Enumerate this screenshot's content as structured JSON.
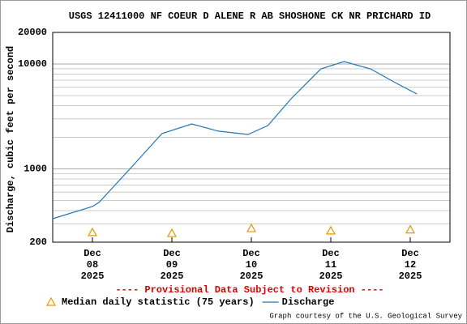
{
  "chart_data": {
    "type": "line",
    "title": "USGS 12411000 NF COEUR D ALENE R AB SHOSHONE CK NR PRICHARD ID",
    "y_label": "Discharge, cubic feet per second",
    "annotation": "---- Provisional Data Subject to Revision ----",
    "credit": "Graph courtesy of the U.S. Geological Survey",
    "log_scale": true,
    "grid": true,
    "legend_position": "bottom",
    "xlim": [
      "2025-12-07T12:00",
      "2025-12-12T12:00"
    ],
    "xticks": [
      {
        "value": "2025-12-08T00:00",
        "label": [
          "Dec",
          "08",
          "2025"
        ]
      },
      {
        "value": "2025-12-09T00:00",
        "label": [
          "Dec",
          "09",
          "2025"
        ]
      },
      {
        "value": "2025-12-10T00:00",
        "label": [
          "Dec",
          "10",
          "2025"
        ]
      },
      {
        "value": "2025-12-11T00:00",
        "label": [
          "Dec",
          "11",
          "2025"
        ]
      },
      {
        "value": "2025-12-12T00:00",
        "label": [
          "Dec",
          "12",
          "2025"
        ]
      }
    ],
    "ylim": [
      200,
      20000
    ],
    "yticks": [
      200,
      1000,
      10000,
      20000
    ],
    "series": [
      {
        "name": "Discharge",
        "color": "#1f77b4",
        "marker": "line",
        "x": [
          "2025-12-07T12:00",
          "2025-12-08T00:00",
          "2025-12-08T02:00",
          "2025-12-08T11:00",
          "2025-12-08T21:00",
          "2025-12-09T06:00",
          "2025-12-09T14:00",
          "2025-12-09T23:00",
          "2025-12-10T05:00",
          "2025-12-10T12:00",
          "2025-12-10T21:00",
          "2025-12-11T04:00",
          "2025-12-11T12:00",
          "2025-12-11T19:00",
          "2025-12-12T02:00"
        ],
        "values": [
          335,
          437,
          480,
          973,
          2170,
          2680,
          2290,
          2130,
          2590,
          4650,
          8990,
          10550,
          8990,
          6760,
          5180
        ]
      },
      {
        "name": "Median daily statistic (75 years)",
        "color": "#e69a00",
        "marker": "triangle",
        "x": [
          "2025-12-08T00:00",
          "2025-12-09T00:00",
          "2025-12-10T00:00",
          "2025-12-11T00:00",
          "2025-12-12T00:00"
        ],
        "values": [
          248,
          243,
          271,
          257,
          263
        ]
      }
    ]
  }
}
